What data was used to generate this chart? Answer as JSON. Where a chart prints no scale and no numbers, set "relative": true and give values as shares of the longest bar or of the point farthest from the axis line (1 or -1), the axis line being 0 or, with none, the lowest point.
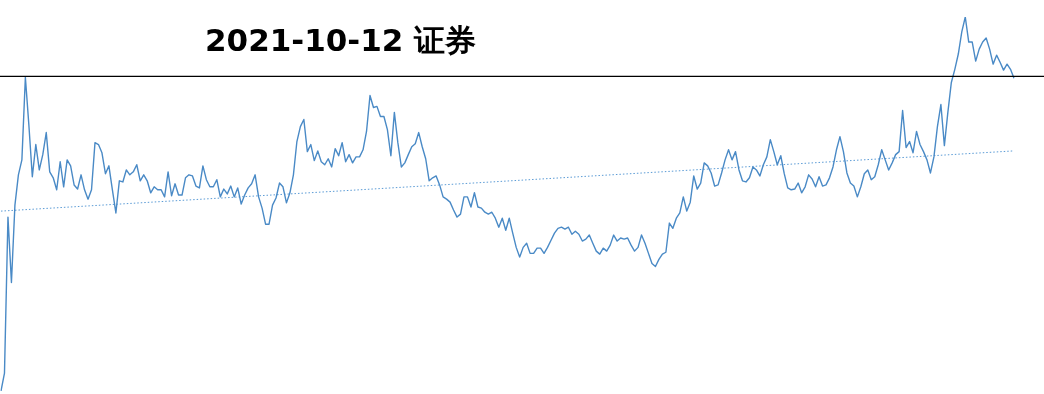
{
  "chart_data": {
    "type": "line",
    "title": "2021-10-12 证券",
    "relative": true,
    "categories": [
      null,
      null,
      null,
      null,
      null,
      null,
      null,
      null,
      null,
      null,
      null,
      null,
      null,
      null,
      null,
      null,
      null,
      null,
      null,
      null,
      null,
      null,
      null,
      null,
      null,
      null,
      null,
      null,
      null,
      null,
      null,
      null,
      null,
      null,
      null,
      null,
      null,
      null,
      null,
      null,
      null,
      null,
      null,
      null,
      null,
      null,
      null,
      null,
      null,
      null,
      null,
      null,
      null,
      null,
      null,
      null,
      null,
      null,
      null,
      null,
      null,
      null,
      null,
      null,
      null,
      null,
      null,
      null,
      null,
      null,
      null,
      null,
      null,
      null,
      null,
      null,
      null,
      null,
      null,
      null,
      null,
      null,
      null,
      null,
      null,
      null,
      null,
      null,
      null,
      null,
      null,
      null,
      null,
      null,
      null,
      null,
      null,
      null,
      null,
      null,
      null,
      null,
      null,
      null,
      null,
      null,
      null,
      null,
      null,
      null,
      null,
      null,
      null,
      null,
      null,
      null,
      null,
      null,
      null,
      null,
      null,
      null,
      null,
      null,
      null,
      null,
      null,
      null,
      null,
      null,
      null,
      null,
      null,
      null,
      null,
      null,
      null,
      null,
      null,
      null,
      null,
      null,
      null,
      null,
      null,
      null,
      null,
      null,
      null,
      null,
      null,
      null,
      null,
      null,
      null,
      null,
      null,
      null,
      null,
      null,
      null,
      null,
      null,
      null,
      null,
      null,
      null,
      null,
      null,
      null,
      null,
      null,
      null,
      null,
      null,
      null,
      null,
      null,
      null,
      null,
      null,
      null,
      null,
      null,
      null,
      null,
      null,
      null,
      null,
      null,
      null,
      null,
      null,
      null,
      null,
      null,
      null,
      null,
      null,
      null,
      null,
      null,
      null,
      null,
      null,
      null,
      null,
      null,
      null,
      null,
      null,
      null,
      null,
      null,
      null,
      null,
      null,
      null,
      null,
      null,
      null,
      null,
      null,
      null,
      null,
      null,
      null,
      null,
      null,
      null,
      null,
      null,
      null,
      null,
      null,
      null,
      null,
      null,
      null,
      null,
      null,
      null,
      null,
      null,
      null,
      null,
      null,
      null,
      null,
      null,
      null,
      null,
      null,
      null,
      null,
      null,
      null,
      null,
      null,
      null,
      null,
      null,
      null,
      null,
      null,
      null,
      null,
      null,
      null,
      null,
      null,
      null,
      null,
      null,
      null,
      null,
      null,
      null,
      null,
      null,
      null,
      null,
      null,
      null,
      null,
      null,
      null,
      null,
      null,
      null,
      null,
      null
    ],
    "series": [
      {
        "color": "#4a8ac6",
        "values": [
          0,
          0.048,
          0.465,
          0.29,
          0.497,
          0.578,
          0.618,
          0.839,
          0.712,
          0.573,
          0.659,
          0.591,
          0.632,
          0.691,
          0.586,
          0.57,
          0.538,
          0.613,
          0.546,
          0.618,
          0.602,
          0.551,
          0.54,
          0.578,
          0.538,
          0.513,
          0.538,
          0.664,
          0.659,
          0.637,
          0.581,
          0.602,
          0.538,
          0.476,
          0.562,
          0.559,
          0.591,
          0.578,
          0.586,
          0.605,
          0.562,
          0.578,
          0.562,
          0.53,
          0.546,
          0.538,
          0.538,
          0.519,
          0.586,
          0.522,
          0.554,
          0.524,
          0.524,
          0.57,
          0.578,
          0.575,
          0.548,
          0.543,
          0.602,
          0.565,
          0.546,
          0.546,
          0.565,
          0.519,
          0.54,
          0.527,
          0.548,
          0.519,
          0.543,
          0.5,
          0.524,
          0.543,
          0.554,
          0.578,
          0.519,
          0.489,
          0.446,
          0.446,
          0.497,
          0.516,
          0.556,
          0.546,
          0.503,
          0.53,
          0.578,
          0.667,
          0.707,
          0.726,
          0.64,
          0.659,
          0.616,
          0.642,
          0.613,
          0.605,
          0.621,
          0.599,
          0.648,
          0.629,
          0.664,
          0.613,
          0.632,
          0.61,
          0.626,
          0.626,
          0.645,
          0.694,
          0.79,
          0.758,
          0.761,
          0.734,
          0.734,
          0.699,
          0.629,
          0.745,
          0.664,
          0.599,
          0.61,
          0.632,
          0.653,
          0.661,
          0.691,
          0.653,
          0.621,
          0.562,
          0.57,
          0.575,
          0.551,
          0.519,
          0.513,
          0.505,
          0.484,
          0.465,
          0.473,
          0.519,
          0.519,
          0.492,
          0.53,
          0.492,
          0.489,
          0.478,
          0.473,
          0.478,
          0.462,
          0.438,
          0.462,
          0.43,
          0.462,
          0.422,
          0.384,
          0.358,
          0.384,
          0.395,
          0.368,
          0.368,
          0.382,
          0.382,
          0.368,
          0.384,
          0.403,
          0.422,
          0.435,
          0.438,
          0.433,
          0.438,
          0.419,
          0.427,
          0.419,
          0.401,
          0.406,
          0.417,
          0.395,
          0.374,
          0.366,
          0.382,
          0.374,
          0.39,
          0.417,
          0.401,
          0.409,
          0.406,
          0.409,
          0.39,
          0.374,
          0.384,
          0.417,
          0.395,
          0.368,
          0.341,
          0.333,
          0.352,
          0.366,
          0.371,
          0.449,
          0.435,
          0.462,
          0.476,
          0.519,
          0.481,
          0.505,
          0.575,
          0.54,
          0.556,
          0.61,
          0.602,
          0.583,
          0.548,
          0.551,
          0.583,
          0.618,
          0.645,
          0.618,
          0.64,
          0.591,
          0.562,
          0.559,
          0.57,
          0.599,
          0.591,
          0.575,
          0.605,
          0.626,
          0.672,
          0.64,
          0.605,
          0.629,
          0.581,
          0.543,
          0.538,
          0.54,
          0.556,
          0.53,
          0.546,
          0.578,
          0.567,
          0.546,
          0.573,
          0.548,
          0.551,
          0.57,
          0.599,
          0.645,
          0.68,
          0.64,
          0.583,
          0.556,
          0.548,
          0.519,
          0.546,
          0.581,
          0.591,
          0.565,
          0.573,
          0.605,
          0.645,
          0.618,
          0.591,
          0.61,
          0.632,
          0.64,
          0.75,
          0.651,
          0.667,
          0.637,
          0.694,
          0.659,
          0.64,
          0.618,
          0.583,
          0.626,
          0.707,
          0.766,
          0.656,
          0.745,
          0.825,
          0.86,
          0.901,
          0.96,
          1,
          0.933,
          0.933,
          0.882,
          0.914,
          0.933,
          0.944,
          0.914,
          0.874,
          0.898,
          0.879,
          0.858,
          0.874,
          0.86,
          0.836
        ]
      },
      {
        "type": "line",
        "line_style": "dotted",
        "color": "#5b9bd5",
        "values": [
          0.481,
          null,
          null,
          null,
          null,
          null,
          null,
          null,
          null,
          null,
          null,
          null,
          null,
          null,
          null,
          null,
          null,
          null,
          null,
          null,
          null,
          null,
          null,
          null,
          null,
          null,
          null,
          null,
          null,
          null,
          null,
          null,
          null,
          null,
          null,
          null,
          null,
          null,
          null,
          null,
          null,
          null,
          null,
          null,
          null,
          null,
          null,
          null,
          null,
          null,
          null,
          null,
          null,
          null,
          null,
          null,
          null,
          null,
          null,
          null,
          null,
          null,
          null,
          null,
          null,
          null,
          null,
          null,
          null,
          null,
          null,
          null,
          null,
          null,
          null,
          null,
          null,
          null,
          null,
          null,
          null,
          null,
          null,
          null,
          null,
          null,
          null,
          null,
          null,
          null,
          null,
          null,
          null,
          null,
          null,
          null,
          null,
          null,
          null,
          null,
          null,
          null,
          null,
          null,
          null,
          null,
          null,
          null,
          null,
          null,
          null,
          null,
          null,
          null,
          null,
          null,
          null,
          null,
          null,
          null,
          null,
          null,
          null,
          null,
          null,
          null,
          null,
          null,
          null,
          null,
          null,
          null,
          null,
          null,
          null,
          null,
          null,
          null,
          null,
          null,
          null,
          null,
          null,
          null,
          null,
          null,
          null,
          null,
          null,
          null,
          null,
          null,
          null,
          null,
          null,
          null,
          null,
          null,
          null,
          null,
          null,
          null,
          null,
          null,
          null,
          null,
          null,
          null,
          null,
          null,
          null,
          null,
          null,
          null,
          null,
          null,
          null,
          null,
          null,
          null,
          null,
          null,
          null,
          null,
          null,
          null,
          null,
          null,
          null,
          null,
          null,
          null,
          null,
          null,
          null,
          null,
          null,
          null,
          null,
          null,
          null,
          null,
          null,
          null,
          null,
          null,
          null,
          null,
          null,
          null,
          null,
          null,
          null,
          null,
          null,
          null,
          null,
          null,
          null,
          null,
          null,
          null,
          null,
          null,
          null,
          null,
          null,
          null,
          null,
          null,
          null,
          null,
          null,
          null,
          null,
          null,
          null,
          null,
          null,
          null,
          null,
          null,
          null,
          null,
          null,
          null,
          null,
          null,
          null,
          null,
          null,
          null,
          null,
          null,
          null,
          null,
          null,
          null,
          null,
          null,
          null,
          null,
          null,
          null,
          null,
          null,
          null,
          null,
          null,
          null,
          null,
          null,
          null,
          null,
          null,
          null,
          null,
          null,
          null,
          null,
          null,
          null,
          null,
          null,
          null,
          null,
          null,
          null,
          null,
          null,
          null,
          0.642
        ]
      }
    ],
    "ref_lines": [
      {
        "axis": "y",
        "value": 0.841,
        "color": "#000000"
      }
    ]
  }
}
